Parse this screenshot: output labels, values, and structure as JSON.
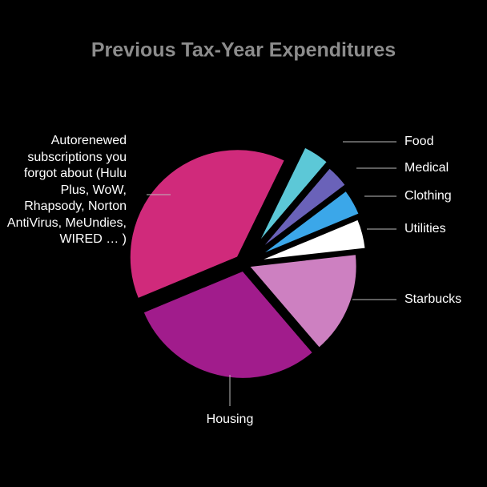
{
  "chart_data": {
    "type": "pie",
    "title": "Previous Tax-Year Expenditures",
    "categories": [
      "Food",
      "Medical",
      "Clothing",
      "Utilities",
      "Starbucks",
      "Housing",
      "Autorenewed subscriptions you forgot about (Hulu Plus, WoW, Rhapsody, Norton AntiVirus, MeUndies, WIRED … )"
    ],
    "values": [
      4,
      3.5,
      4,
      4.5,
      15.5,
      30,
      38.5
    ],
    "colors": [
      "#5cc8d7",
      "#6a62b9",
      "#3ba7e9",
      "#ffffff",
      "#cd80c1",
      "#a11c8c",
      "#d02a7b"
    ]
  }
}
